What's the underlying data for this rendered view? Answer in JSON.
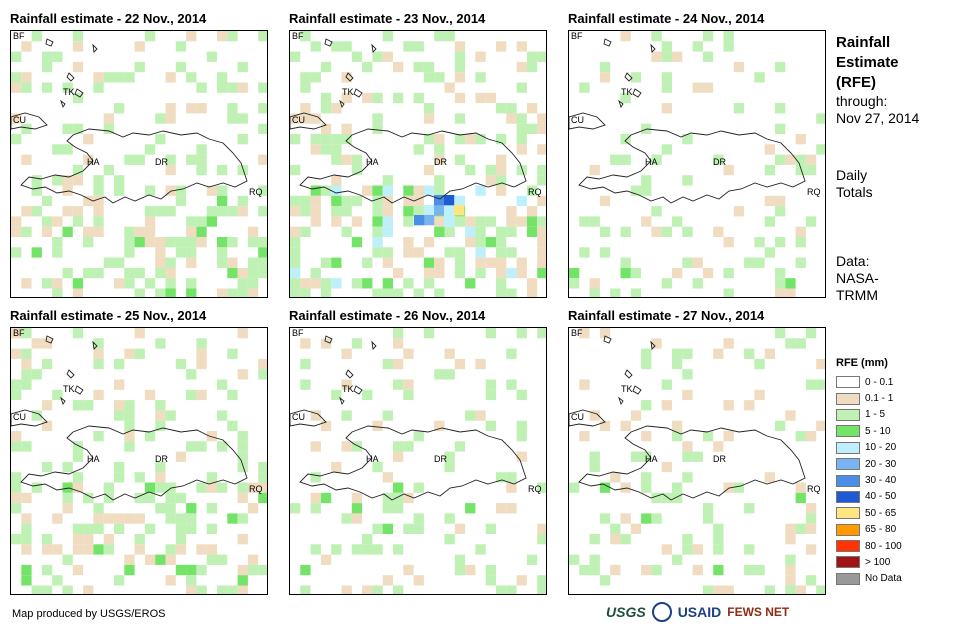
{
  "panels": [
    {
      "title": "Rainfall estimate - 22 Nov., 2014",
      "intensity": 0.45
    },
    {
      "title": "Rainfall estimate - 23 Nov., 2014",
      "intensity": 0.6
    },
    {
      "title": "Rainfall estimate - 24 Nov., 2014",
      "intensity": 0.25
    },
    {
      "title": "Rainfall estimate - 25 Nov., 2014",
      "intensity": 0.5
    },
    {
      "title": "Rainfall estimate - 26 Nov., 2014",
      "intensity": 0.3
    },
    {
      "title": "Rainfall estimate - 27 Nov., 2014",
      "intensity": 0.25
    }
  ],
  "map_labels": {
    "bf": "BF",
    "cu": "CU",
    "tk": "TK",
    "ha": "HA",
    "dr": "DR",
    "rq": "RQ"
  },
  "side": {
    "title_line1": "Rainfall",
    "title_line2": "Estimate",
    "title_line3": "(RFE)",
    "through": "through:",
    "date": "Nov 27, 2014",
    "daily1": "Daily",
    "daily2": "Totals",
    "data1": "Data:",
    "data2": "NASA-",
    "data3": "TRMM"
  },
  "legend": {
    "title": "RFE (mm)",
    "items": [
      {
        "label": "0 - 0.1",
        "color": "#ffffff"
      },
      {
        "label": "0.1 - 1",
        "color": "#f0dcc0"
      },
      {
        "label": "1 - 5",
        "color": "#bff0b4"
      },
      {
        "label": "5 - 10",
        "color": "#74e468"
      },
      {
        "label": "10 - 20",
        "color": "#bdf0fa"
      },
      {
        "label": "20 - 30",
        "color": "#7ab4f0"
      },
      {
        "label": "30 - 40",
        "color": "#4a8ee8"
      },
      {
        "label": "40 - 50",
        "color": "#1e5ad2"
      },
      {
        "label": "50 - 65",
        "color": "#ffe680"
      },
      {
        "label": "65 - 80",
        "color": "#ff9a00"
      },
      {
        "label": "80 - 100",
        "color": "#ff3200"
      },
      {
        "label": "> 100",
        "color": "#a01414"
      },
      {
        "label": "No Data",
        "color": "#999999"
      }
    ]
  },
  "credit": "Map produced by USGS/EROS",
  "logos": {
    "usgs": "USGS",
    "usaid": "USAID",
    "fews": "FEWS NET"
  }
}
